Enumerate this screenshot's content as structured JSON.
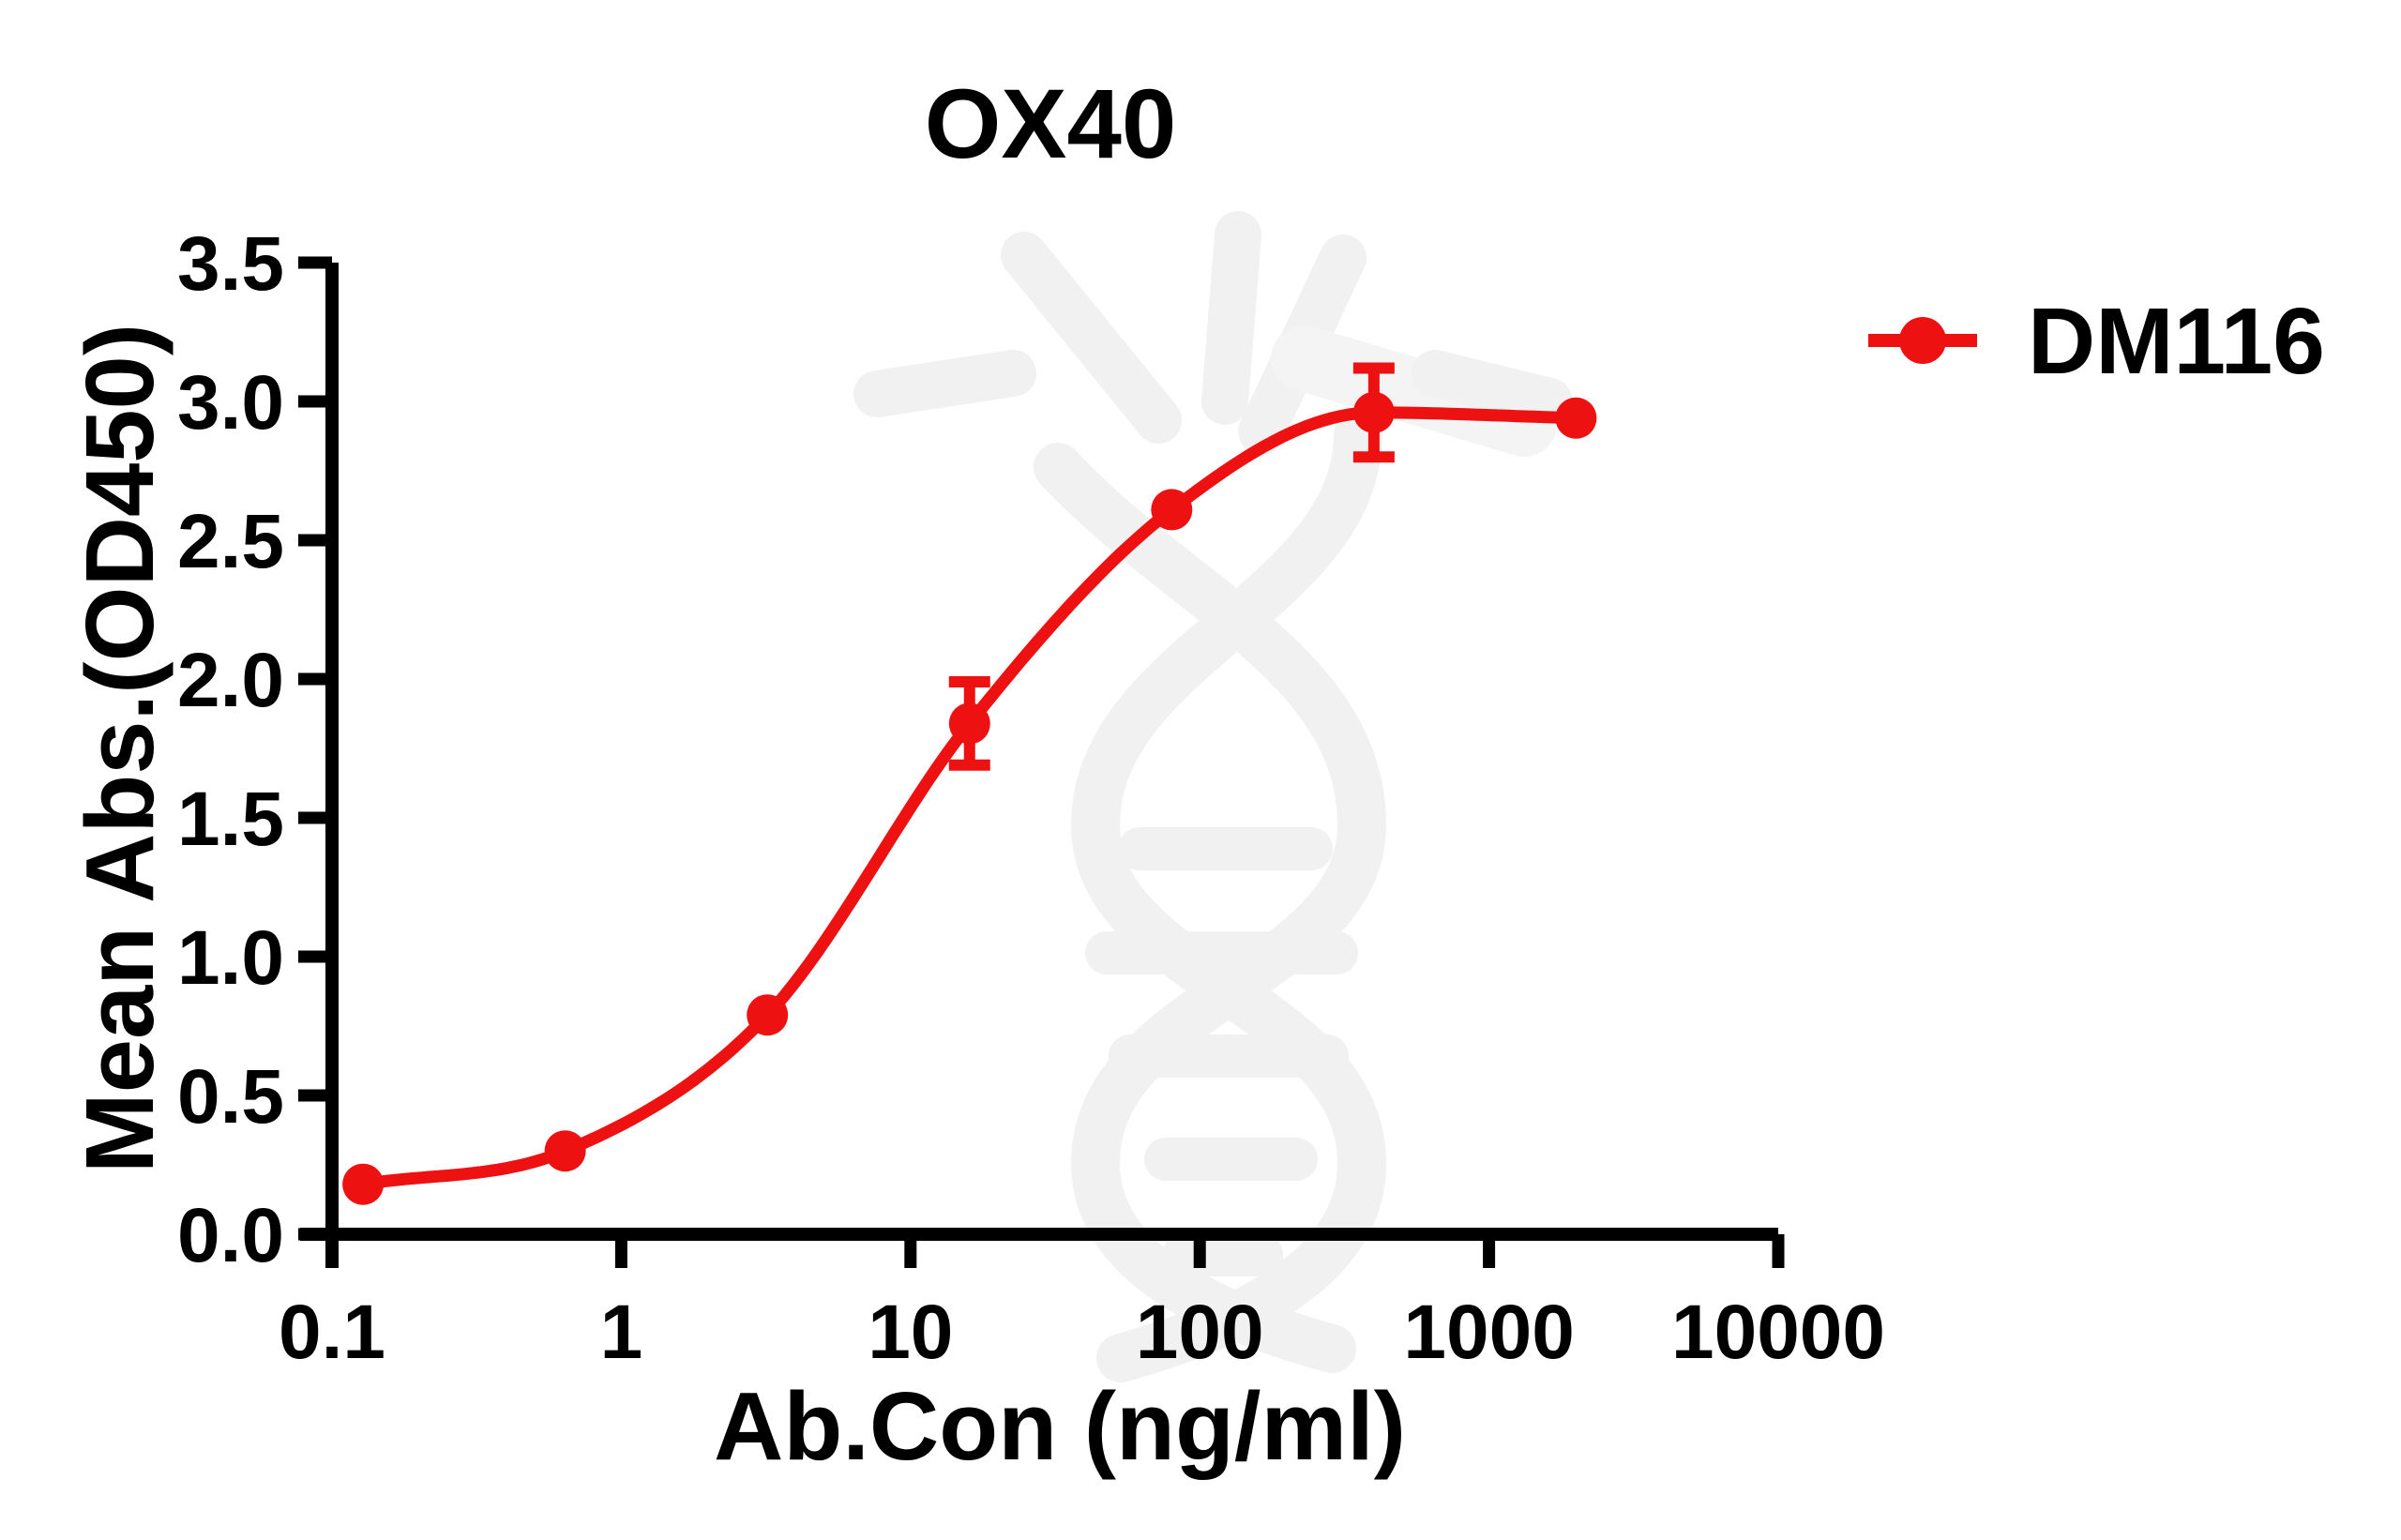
{
  "chart_data": {
    "type": "line",
    "title": "OX40",
    "xlabel": "Ab.Con (ng/ml)",
    "ylabel": "Mean Abs.(OD450)",
    "x_scale": "log10",
    "xlim": [
      0.1,
      10000
    ],
    "ylim": [
      0.0,
      3.5
    ],
    "grid": false,
    "legend_position": "right",
    "x_ticks": [
      0.1,
      1,
      10,
      100,
      1000,
      10000
    ],
    "x_tick_labels": [
      "0.1",
      "1",
      "10",
      "100",
      "1000",
      "10000"
    ],
    "y_ticks": [
      0.0,
      0.5,
      1.0,
      1.5,
      2.0,
      2.5,
      3.0,
      3.5
    ],
    "y_tick_labels": [
      "0.0",
      "0.5",
      "1.0",
      "1.5",
      "2.0",
      "2.5",
      "3.0",
      "3.5"
    ],
    "series": [
      {
        "name": "DM116",
        "color": "#ee1111",
        "marker": "circle",
        "points": [
          {
            "x": 0.128,
            "y": 0.18,
            "err": 0
          },
          {
            "x": 0.64,
            "y": 0.3,
            "err": 0
          },
          {
            "x": 3.2,
            "y": 0.79,
            "err": 0
          },
          {
            "x": 16,
            "y": 1.84,
            "err": 0.15
          },
          {
            "x": 80,
            "y": 2.61,
            "err": 0
          },
          {
            "x": 400,
            "y": 2.96,
            "err": 0.16
          },
          {
            "x": 2000,
            "y": 2.94,
            "err": 0
          }
        ]
      }
    ]
  },
  "colors": {
    "series_red": "#ee1111",
    "axis_black": "#000000",
    "watermark_gray": "#f1f1f1",
    "background": "#ffffff"
  }
}
